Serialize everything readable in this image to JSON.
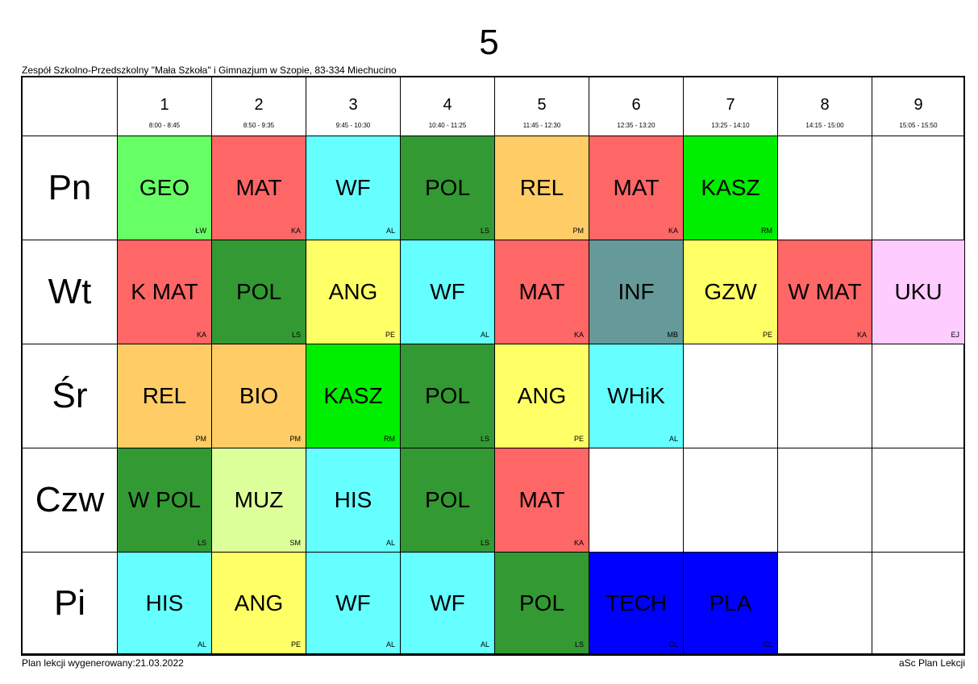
{
  "class_name": "5",
  "school": "Zespół Szkolno-Przedszkolny \"Mała Szkoła\" i Gimnazjum w Szopie, 83-334 Miechucino",
  "periods": [
    {
      "num": "1",
      "time": "8:00 - 8:45"
    },
    {
      "num": "2",
      "time": "8:50 - 9:35"
    },
    {
      "num": "3",
      "time": "9:45 - 10:30"
    },
    {
      "num": "4",
      "time": "10:40 - 11:25"
    },
    {
      "num": "5",
      "time": "11:45 - 12:30"
    },
    {
      "num": "6",
      "time": "12:35 - 13:20"
    },
    {
      "num": "7",
      "time": "13:25 - 14:10"
    },
    {
      "num": "8",
      "time": "14:15 - 15:00"
    },
    {
      "num": "9",
      "time": "15:05 - 15:50"
    }
  ],
  "days": [
    {
      "name": "Pn",
      "lessons": [
        {
          "subject": "GEO",
          "teacher": "ŁW",
          "color": "#66ff66"
        },
        {
          "subject": "MAT",
          "teacher": "KA",
          "color": "#ff6666"
        },
        {
          "subject": "WF",
          "teacher": "AL",
          "color": "#66ffff"
        },
        {
          "subject": "POL",
          "teacher": "LS",
          "color": "#339933"
        },
        {
          "subject": "REL",
          "teacher": "PM",
          "color": "#ffcc66"
        },
        {
          "subject": "MAT",
          "teacher": "KA",
          "color": "#ff6666"
        },
        {
          "subject": "KASZ",
          "teacher": "RM",
          "color": "#00ee00"
        },
        null,
        null
      ]
    },
    {
      "name": "Wt",
      "lessons": [
        {
          "subject": "K MAT",
          "teacher": "KA",
          "color": "#ff6666"
        },
        {
          "subject": "POL",
          "teacher": "LS",
          "color": "#339933"
        },
        {
          "subject": "ANG",
          "teacher": "PE",
          "color": "#ffff66"
        },
        {
          "subject": "WF",
          "teacher": "AL",
          "color": "#66ffff"
        },
        {
          "subject": "MAT",
          "teacher": "KA",
          "color": "#ff6666"
        },
        {
          "subject": "INF",
          "teacher": "MB",
          "color": "#669999"
        },
        {
          "subject": "GZW",
          "teacher": "PE",
          "color": "#ffff66"
        },
        {
          "subject": "W MAT",
          "teacher": "KA",
          "color": "#ff6666"
        },
        {
          "subject": "UKU",
          "teacher": "EJ",
          "color": "#ffccff"
        }
      ]
    },
    {
      "name": "Śr",
      "lessons": [
        {
          "subject": "REL",
          "teacher": "PM",
          "color": "#ffcc66"
        },
        {
          "subject": "BIO",
          "teacher": "PM",
          "color": "#ffcc66"
        },
        {
          "subject": "KASZ",
          "teacher": "RM",
          "color": "#00ee00"
        },
        {
          "subject": "POL",
          "teacher": "LS",
          "color": "#339933"
        },
        {
          "subject": "ANG",
          "teacher": "PE",
          "color": "#ffff66"
        },
        {
          "subject": "WHiK",
          "teacher": "AL",
          "color": "#66ffff"
        },
        null,
        null,
        null
      ]
    },
    {
      "name": "Czw",
      "lessons": [
        {
          "subject": "W POL",
          "teacher": "LS",
          "color": "#339933"
        },
        {
          "subject": "MUZ",
          "teacher": "SM",
          "color": "#ddff99"
        },
        {
          "subject": "HIS",
          "teacher": "AL",
          "color": "#66ffff"
        },
        {
          "subject": "POL",
          "teacher": "LS",
          "color": "#339933"
        },
        {
          "subject": "MAT",
          "teacher": "KA",
          "color": "#ff6666"
        },
        null,
        null,
        null,
        null
      ]
    },
    {
      "name": "Pi",
      "lessons": [
        {
          "subject": "HIS",
          "teacher": "AL",
          "color": "#66ffff"
        },
        {
          "subject": "ANG",
          "teacher": "PE",
          "color": "#ffff66"
        },
        {
          "subject": "WF",
          "teacher": "AL",
          "color": "#66ffff"
        },
        {
          "subject": "WF",
          "teacher": "AL",
          "color": "#66ffff"
        },
        {
          "subject": "POL",
          "teacher": "LS",
          "color": "#339933"
        },
        {
          "subject": "TECH",
          "teacher": "CL",
          "color": "#0000ff"
        },
        {
          "subject": "PLA",
          "teacher": "CL",
          "color": "#0000ff"
        },
        null,
        null
      ]
    }
  ],
  "footer": {
    "generated": "Plan lekcji wygenerowany:21.03.2022",
    "software": "aSc Plan Lekcji"
  }
}
